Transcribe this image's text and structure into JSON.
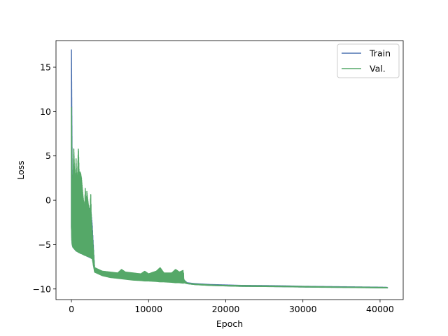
{
  "chart_data": {
    "type": "line",
    "title": "",
    "xlabel": "Epoch",
    "ylabel": "Loss",
    "xlim": [
      -2000,
      43000
    ],
    "ylim": [
      -11.2,
      18.0
    ],
    "x_ticks": [
      0,
      10000,
      20000,
      30000,
      40000
    ],
    "y_ticks": [
      -10,
      -5,
      0,
      5,
      10,
      15
    ],
    "grid": false,
    "legend_position": "top-right",
    "series": [
      {
        "name": "Train",
        "color": "#4c72b0",
        "x": [
          0,
          50,
          100,
          200,
          400,
          600,
          800,
          1000,
          1500,
          2000,
          2500,
          2700,
          3000,
          4000,
          5000,
          6000,
          8000,
          10000,
          12000,
          14000,
          14600,
          15000,
          16000,
          18000,
          20000,
          22000,
          25000,
          28000,
          30000,
          32000,
          35000,
          38000,
          40000,
          41000
        ],
        "low": [
          -3.0,
          -4.5,
          -5.0,
          -5.3,
          -5.5,
          -5.7,
          -5.8,
          -5.9,
          -6.1,
          -6.3,
          -6.5,
          -6.6,
          -8.0,
          -8.4,
          -8.6,
          -8.7,
          -8.9,
          -9.0,
          -9.1,
          -9.2,
          -9.3,
          -9.4,
          -9.5,
          -9.6,
          -9.65,
          -9.7,
          -9.72,
          -9.75,
          -9.78,
          -9.8,
          -9.82,
          -9.85,
          -9.87,
          -9.88
        ],
        "high": [
          17.0,
          10.0,
          3.0,
          1.0,
          0.5,
          0.2,
          0.0,
          -0.3,
          -0.5,
          -0.8,
          -1.0,
          -2.8,
          -7.6,
          -8.1,
          -8.3,
          -8.4,
          -8.6,
          -8.7,
          -8.8,
          -8.9,
          -9.0,
          -9.3,
          -9.4,
          -9.5,
          -9.55,
          -9.6,
          -9.62,
          -9.66,
          -9.7,
          -9.72,
          -9.75,
          -9.78,
          -9.8,
          -9.82
        ]
      },
      {
        "name": "Val.",
        "color": "#55a868",
        "x": [
          0,
          50,
          100,
          200,
          300,
          400,
          500,
          600,
          700,
          800,
          900,
          1000,
          1100,
          1200,
          1300,
          1500,
          1700,
          1800,
          1900,
          2000,
          2200,
          2400,
          2500,
          2600,
          2700,
          3000,
          4000,
          5000,
          6000,
          6500,
          7000,
          8000,
          9000,
          9500,
          10000,
          11000,
          11500,
          12000,
          13000,
          13500,
          14000,
          14500,
          14600,
          15000,
          16000,
          18000,
          20000,
          22000,
          25000,
          28000,
          30000,
          32000,
          35000,
          38000,
          40000,
          41000
        ],
        "low": [
          -3.0,
          -4.5,
          -5.0,
          -5.3,
          -5.4,
          -5.5,
          -5.6,
          -5.7,
          -5.75,
          -5.8,
          -5.85,
          -5.9,
          -5.95,
          -6.0,
          -6.0,
          -6.1,
          -6.2,
          -6.2,
          -6.25,
          -6.3,
          -6.35,
          -6.4,
          -6.5,
          -6.55,
          -6.6,
          -8.1,
          -8.5,
          -8.7,
          -8.8,
          -8.85,
          -8.9,
          -9.0,
          -9.05,
          -9.1,
          -9.1,
          -9.15,
          -9.2,
          -9.2,
          -9.25,
          -9.3,
          -9.3,
          -9.35,
          -9.3,
          -9.4,
          -9.5,
          -9.6,
          -9.65,
          -9.7,
          -9.72,
          -9.75,
          -9.78,
          -9.8,
          -9.82,
          -9.85,
          -9.87,
          -9.88
        ],
        "high": [
          10.5,
          6.0,
          0.5,
          2.0,
          6.0,
          3.5,
          1.5,
          4.7,
          2.0,
          3.0,
          6.0,
          3.0,
          3.2,
          3.0,
          2.5,
          0.5,
          -1.0,
          1.5,
          -0.8,
          1.0,
          -0.5,
          -1.5,
          0.8,
          -2.5,
          -3.5,
          -7.6,
          -8.0,
          -8.1,
          -8.2,
          -7.8,
          -8.1,
          -8.2,
          -8.3,
          -8.0,
          -8.3,
          -8.0,
          -7.6,
          -8.2,
          -8.2,
          -7.8,
          -8.1,
          -7.9,
          -9.0,
          -9.35,
          -9.45,
          -9.55,
          -9.6,
          -9.62,
          -9.66,
          -9.7,
          -9.72,
          -9.75,
          -9.78,
          -9.8,
          -9.82,
          -9.84
        ]
      }
    ]
  }
}
